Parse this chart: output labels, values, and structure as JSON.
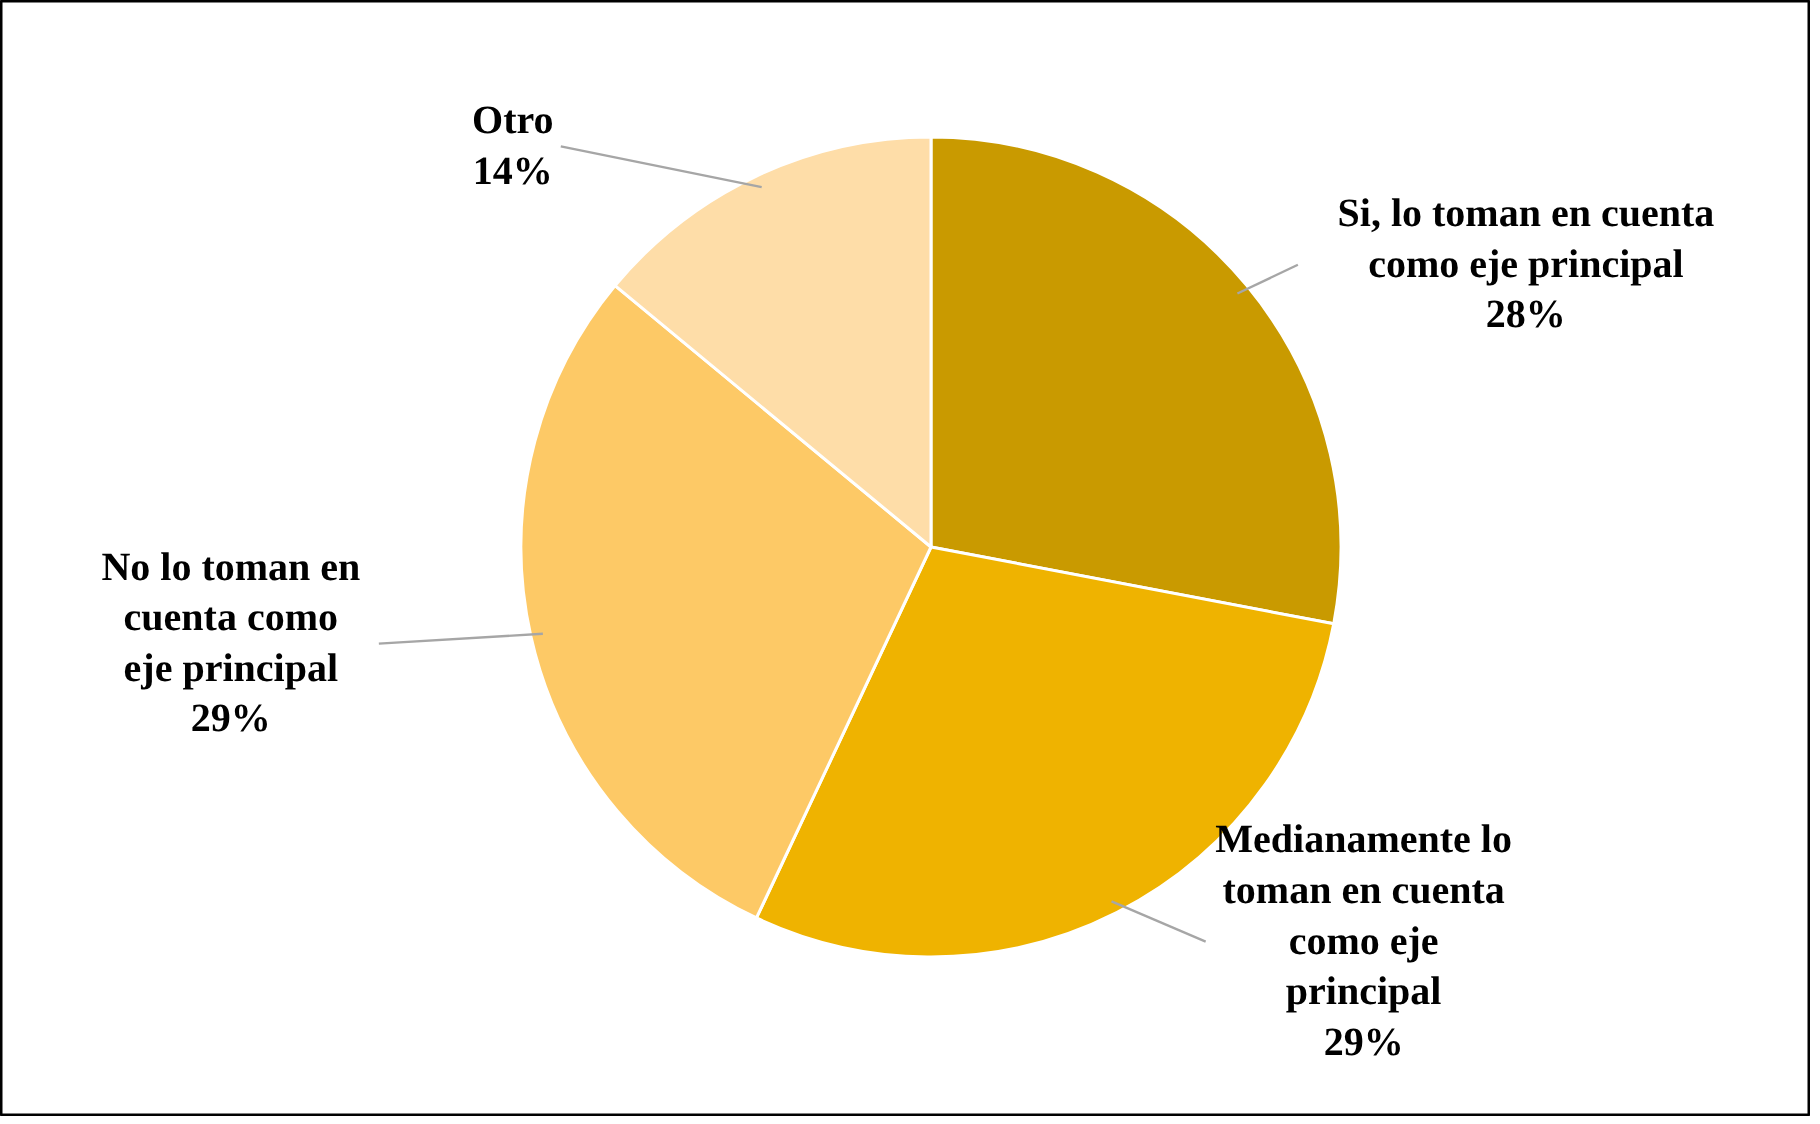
{
  "chart_data": {
    "type": "pie",
    "categories": [
      "Si, lo toman en cuenta\ncomo eje principal",
      "Medianamente lo\ntoman en cuenta\ncomo eje\nprincipal",
      "No lo toman en\ncuenta como\neje principal",
      "Otro"
    ],
    "values": [
      28,
      29,
      29,
      14
    ],
    "colors": [
      "#c99a00",
      "#efb300",
      "#fdc966",
      "#fedda8"
    ],
    "value_labels": [
      "28%",
      "29%",
      "29%",
      "14%"
    ],
    "data_labels": true
  }
}
